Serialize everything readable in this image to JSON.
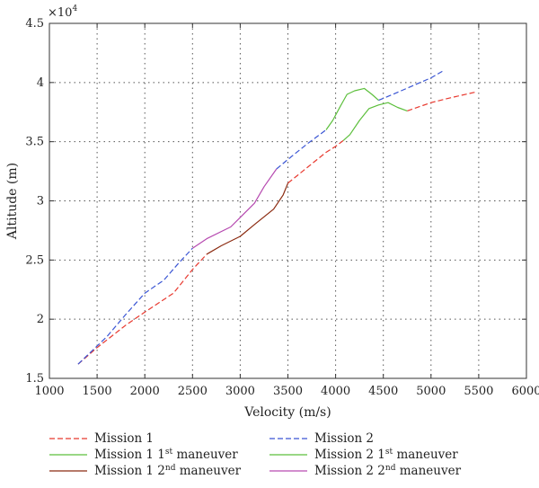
{
  "chart_data": {
    "type": "line",
    "xlabel": "Velocity (m/s)",
    "ylabel": "Altitude (m)",
    "y_multiplier": "×10",
    "y_multiplier_exp": "4",
    "xlim": [
      1000,
      6000
    ],
    "ylim": [
      1.5,
      4.5
    ],
    "xticks": [
      1000,
      1500,
      2000,
      2500,
      3000,
      3500,
      4000,
      4500,
      5000,
      5500,
      6000
    ],
    "xtick_labels": [
      "1000",
      "1500",
      "2000",
      "2500",
      "3000",
      "3500",
      "4000",
      "4500",
      "5000",
      "5500",
      "6000"
    ],
    "yticks": [
      1.5,
      2,
      2.5,
      3,
      3.5,
      4,
      4.5
    ],
    "ytick_labels": [
      "1.5",
      "2",
      "2.5",
      "3",
      "3.5",
      "4",
      "4.5"
    ],
    "grid": true,
    "legend_placement": "below",
    "series": [
      {
        "key": "m1",
        "legend": {
          "text": "Mission 1",
          "sup": "",
          "suffix": ""
        },
        "color": "#e8392f",
        "dash": true,
        "segments": [
          [
            [
              1300,
              1.62
            ],
            [
              1500,
              1.76
            ],
            [
              1800,
              1.95
            ],
            [
              2000,
              2.06
            ],
            [
              2300,
              2.22
            ],
            [
              2500,
              2.42
            ],
            [
              2650,
              2.55
            ]
          ],
          [
            [
              3500,
              3.15
            ],
            [
              3700,
              3.28
            ],
            [
              3900,
              3.41
            ],
            [
              4000,
              3.46
            ],
            [
              4080,
              3.51
            ]
          ],
          [
            [
              4750,
              3.76
            ],
            [
              5000,
              3.83
            ],
            [
              5200,
              3.87
            ],
            [
              5470,
              3.92
            ]
          ]
        ]
      },
      {
        "key": "m2",
        "legend": {
          "text": "Mission 2",
          "sup": "",
          "suffix": ""
        },
        "color": "#3a55d4",
        "dash": true,
        "segments": [
          [
            [
              1300,
              1.62
            ],
            [
              1600,
              1.85
            ],
            [
              1800,
              2.04
            ],
            [
              2000,
              2.22
            ],
            [
              2200,
              2.33
            ],
            [
              2350,
              2.47
            ],
            [
              2500,
              2.6
            ]
          ],
          [
            [
              3380,
              3.27
            ],
            [
              3500,
              3.35
            ],
            [
              3700,
              3.48
            ],
            [
              3900,
              3.6
            ]
          ],
          [
            [
              4450,
              3.85
            ],
            [
              4600,
              3.9
            ],
            [
              4800,
              3.97
            ],
            [
              5000,
              4.04
            ],
            [
              5130,
              4.1
            ]
          ]
        ]
      },
      {
        "key": "m1a",
        "legend": {
          "text": "Mission 1 1",
          "sup": "st",
          "suffix": " maneuver"
        },
        "color": "#5cbf3c",
        "dash": false,
        "segments": [
          [
            [
              4080,
              3.51
            ],
            [
              4150,
              3.56
            ],
            [
              4250,
              3.68
            ],
            [
              4350,
              3.78
            ],
            [
              4450,
              3.81
            ],
            [
              4550,
              3.83
            ],
            [
              4650,
              3.79
            ],
            [
              4750,
              3.76
            ]
          ]
        ]
      },
      {
        "key": "m2a",
        "legend": {
          "text": "Mission 2 1",
          "sup": "st",
          "suffix": " maneuver"
        },
        "color": "#5cbf3c",
        "dash": false,
        "segments": [
          [
            [
              3900,
              3.6
            ],
            [
              3970,
              3.68
            ],
            [
              4050,
              3.8
            ],
            [
              4120,
              3.9
            ],
            [
              4200,
              3.93
            ],
            [
              4300,
              3.95
            ],
            [
              4380,
              3.9
            ],
            [
              4450,
              3.85
            ]
          ]
        ]
      },
      {
        "key": "m1b",
        "legend": {
          "text": "Mission 1 2",
          "sup": "nd",
          "suffix": " maneuver"
        },
        "color": "#8b2a10",
        "dash": false,
        "segments": [
          [
            [
              2650,
              2.55
            ],
            [
              2800,
              2.62
            ],
            [
              3000,
              2.7
            ],
            [
              3150,
              2.8
            ],
            [
              3350,
              2.93
            ],
            [
              3450,
              3.05
            ],
            [
              3500,
              3.15
            ]
          ]
        ]
      },
      {
        "key": "m2b",
        "legend": {
          "text": "Mission 2 2",
          "sup": "nd",
          "suffix": " maneuver"
        },
        "color": "#b64ab0",
        "dash": false,
        "segments": [
          [
            [
              2500,
              2.6
            ],
            [
              2650,
              2.68
            ],
            [
              2900,
              2.78
            ],
            [
              3000,
              2.86
            ],
            [
              3150,
              2.98
            ],
            [
              3250,
              3.12
            ],
            [
              3380,
              3.27
            ]
          ]
        ]
      }
    ]
  }
}
